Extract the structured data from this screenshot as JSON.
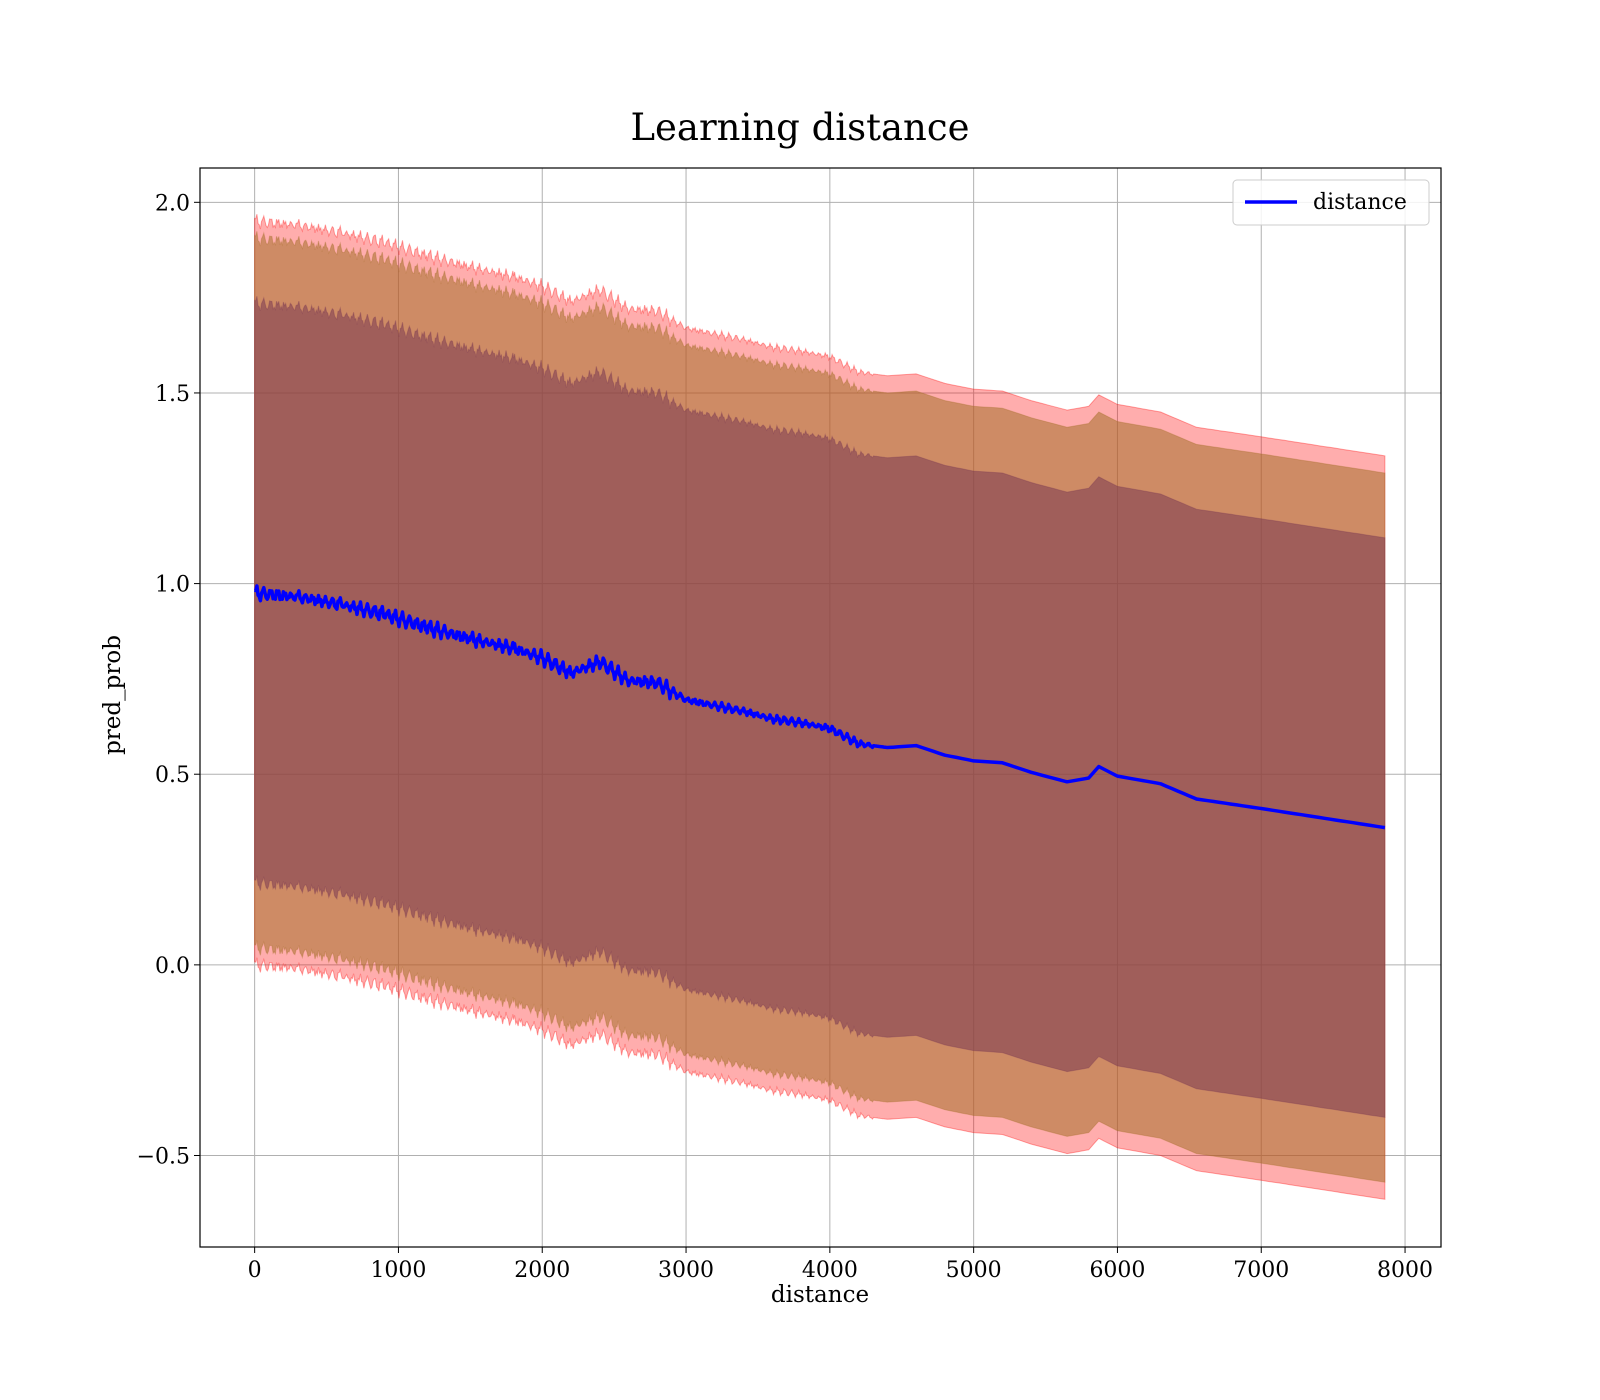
{
  "chart_data": {
    "type": "line",
    "title": "Learning distance",
    "xlabel": "distance",
    "ylabel": "pred_prob",
    "xlim": [
      -380,
      8250
    ],
    "ylim": [
      -0.74,
      2.09
    ],
    "xticks": [
      0,
      1000,
      2000,
      3000,
      4000,
      5000,
      6000,
      7000,
      8000
    ],
    "xtick_labels": [
      "0",
      "1000",
      "2000",
      "3000",
      "4000",
      "5000",
      "6000",
      "7000",
      "8000"
    ],
    "yticks": [
      -0.5,
      0.0,
      0.5,
      1.0,
      1.5,
      2.0
    ],
    "ytick_labels": [
      "−0.5",
      "0.0",
      "0.5",
      "1.0",
      "1.5",
      "2.0"
    ],
    "grid": true,
    "legend": {
      "position": "top-right",
      "entries": [
        "distance"
      ]
    },
    "colors": {
      "line": "#0000ff",
      "band_outer": "#ff0000",
      "band_middle": "#a6702a",
      "band_inner": "#7a3a52"
    },
    "x": [
      0,
      300,
      600,
      900,
      1200,
      1500,
      1800,
      2000,
      2200,
      2400,
      2600,
      2800,
      3000,
      3200,
      3400,
      3600,
      3800,
      4000,
      4200,
      4400,
      4600,
      4800,
      5000,
      5200,
      5400,
      5650,
      5800,
      5870,
      6000,
      6300,
      6550,
      7000,
      7860
    ],
    "series": [
      {
        "name": "distance",
        "values": [
          0.975,
          0.965,
          0.945,
          0.92,
          0.885,
          0.855,
          0.83,
          0.805,
          0.765,
          0.795,
          0.745,
          0.74,
          0.695,
          0.68,
          0.665,
          0.645,
          0.635,
          0.62,
          0.58,
          0.57,
          0.575,
          0.55,
          0.535,
          0.53,
          0.505,
          0.48,
          0.49,
          0.52,
          0.495,
          0.475,
          0.435,
          0.41,
          0.36
        ]
      }
    ],
    "bands": [
      {
        "name": "outer",
        "half_width": 0.975
      },
      {
        "name": "middle",
        "half_width": 0.93
      },
      {
        "name": "inner",
        "half_width": 0.76
      }
    ]
  }
}
